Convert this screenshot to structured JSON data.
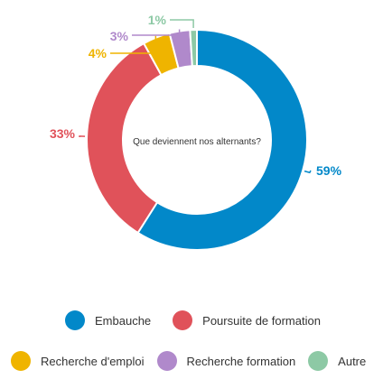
{
  "chart_data": {
    "type": "pie",
    "variant": "donut",
    "title": "Que deviennent nos alternants?",
    "categories": [
      "Embauche",
      "Poursuite de formation",
      "Recherche d'emploi",
      "Recherche formation",
      "Autre"
    ],
    "values": [
      59,
      33,
      4,
      3,
      1
    ],
    "value_labels": [
      "59%",
      "33%",
      "4%",
      "3%",
      "1%"
    ],
    "colors": [
      "#0288c9",
      "#e0525a",
      "#efb400",
      "#b089cb",
      "#8dc9a5"
    ],
    "legend_position": "bottom"
  },
  "legend": {
    "items": [
      {
        "label": "Embauche",
        "color": "#0288c9"
      },
      {
        "label": "Poursuite de formation",
        "color": "#e0525a"
      },
      {
        "label": "Recherche d'emploi",
        "color": "#efb400"
      },
      {
        "label": "Recherche formation",
        "color": "#b089cb"
      },
      {
        "label": "Autre",
        "color": "#8dc9a5"
      }
    ]
  }
}
